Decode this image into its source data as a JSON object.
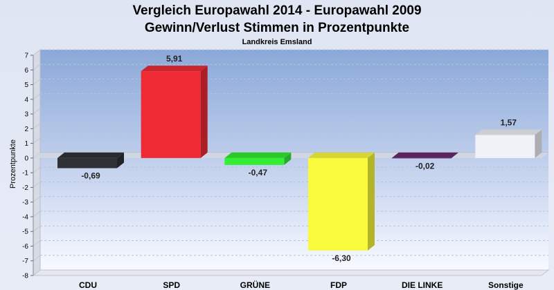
{
  "chart_data": {
    "type": "bar",
    "title_line1": "Vergleich Europawahl 2014 - Europawahl 2009",
    "title_line2": "Gewinn/Verlust Stimmen in Prozentpunkte",
    "subtitle": "Landkreis Emsland",
    "ylabel": "Prozentpunkte",
    "xlabel": "",
    "ylim": [
      -8,
      7
    ],
    "yticks": [
      -8,
      -7,
      -6,
      -5,
      -4,
      -3,
      -2,
      -1,
      0,
      1,
      2,
      3,
      4,
      5,
      6,
      7
    ],
    "grid": true,
    "categories": [
      "CDU",
      "SPD",
      "GRÜNE",
      "FDP",
      "DIE LINKE",
      "Sonstige"
    ],
    "values": [
      -0.69,
      5.91,
      -0.47,
      -6.3,
      -0.02,
      1.57
    ],
    "value_labels": [
      "-0,69",
      "5,91",
      "-0,47",
      "-6,30",
      "-0,02",
      "1,57"
    ],
    "colors": [
      "#2e3236",
      "#ee2a35",
      "#33ee33",
      "#fafa3c",
      "#6a2a6e",
      "#f0f2f8"
    ]
  }
}
